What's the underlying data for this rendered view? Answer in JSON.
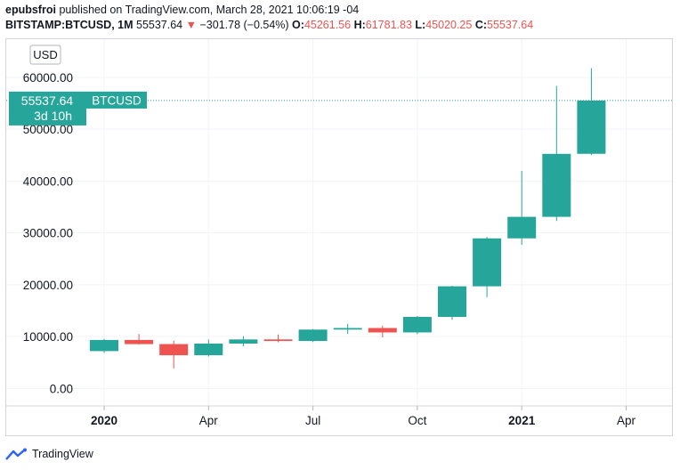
{
  "header": {
    "author": "epubsfroi",
    "published_text": "published on TradingView.com, March 28, 2021 10:06:19 -04",
    "symbol": "BITSTAMP:BTCUSD, 1M",
    "last_price": "55537.64",
    "change_arrow": "▼",
    "change": "−301.78 (−0.54%)",
    "o_label": "O:",
    "o_value": "45261.56",
    "h_label": "H:",
    "h_value": "61781.83",
    "l_label": "L:",
    "l_value": "45020.25",
    "c_label": "C:",
    "c_value": "55537.64"
  },
  "currency_label": "USD",
  "price_tag": {
    "price": "55537.64",
    "symbol": "BTCUSD",
    "countdown": "3d 10h"
  },
  "footer": {
    "brand": "TradingView"
  },
  "colors": {
    "up": "#26a69a",
    "down": "#ef5350",
    "grid": "#f0f3fa",
    "axis_text": "#131722"
  },
  "chart_data": {
    "type": "candlestick",
    "title": "",
    "xlabel": "",
    "ylabel": "",
    "ylim": [
      -2000,
      66000
    ],
    "y_ticks": [
      0,
      10000,
      20000,
      30000,
      40000,
      50000,
      60000
    ],
    "y_tick_labels": [
      "0.00",
      "10000.00",
      "20000.00",
      "30000.00",
      "40000.00",
      "50000.00",
      "60000.00"
    ],
    "x_ticks": [
      {
        "index": 0,
        "label": "2020",
        "bold": true
      },
      {
        "index": 3,
        "label": "Apr",
        "bold": false
      },
      {
        "index": 6,
        "label": "Jul",
        "bold": false
      },
      {
        "index": 9,
        "label": "Oct",
        "bold": false
      },
      {
        "index": 12,
        "label": "2021",
        "bold": true
      },
      {
        "index": 15,
        "label": "Apr",
        "bold": false
      }
    ],
    "last_price": 55537.64,
    "candles": [
      {
        "month": "2020-01",
        "o": 7200,
        "h": 9550,
        "l": 6850,
        "c": 9350
      },
      {
        "month": "2020-02",
        "o": 9350,
        "h": 10500,
        "l": 8450,
        "c": 8550
      },
      {
        "month": "2020-03",
        "o": 8550,
        "h": 9200,
        "l": 3850,
        "c": 6400
      },
      {
        "month": "2020-04",
        "o": 6400,
        "h": 9450,
        "l": 6150,
        "c": 8650
      },
      {
        "month": "2020-05",
        "o": 8650,
        "h": 10050,
        "l": 8100,
        "c": 9450
      },
      {
        "month": "2020-06",
        "o": 9450,
        "h": 10400,
        "l": 8900,
        "c": 9150
      },
      {
        "month": "2020-07",
        "o": 9150,
        "h": 11450,
        "l": 8950,
        "c": 11350
      },
      {
        "month": "2020-08",
        "o": 11350,
        "h": 12450,
        "l": 10550,
        "c": 11650
      },
      {
        "month": "2020-09",
        "o": 11650,
        "h": 12100,
        "l": 9850,
        "c": 10800
      },
      {
        "month": "2020-10",
        "o": 10800,
        "h": 14000,
        "l": 10450,
        "c": 13800
      },
      {
        "month": "2020-11",
        "o": 13800,
        "h": 19800,
        "l": 13250,
        "c": 19700
      },
      {
        "month": "2020-12",
        "o": 19700,
        "h": 29200,
        "l": 17600,
        "c": 28950
      },
      {
        "month": "2021-01",
        "o": 28950,
        "h": 41950,
        "l": 27700,
        "c": 33100
      },
      {
        "month": "2021-02",
        "o": 33100,
        "h": 58350,
        "l": 32300,
        "c": 45250
      },
      {
        "month": "2021-03",
        "o": 45261.56,
        "h": 61781.83,
        "l": 45020.25,
        "c": 55537.64
      }
    ]
  }
}
